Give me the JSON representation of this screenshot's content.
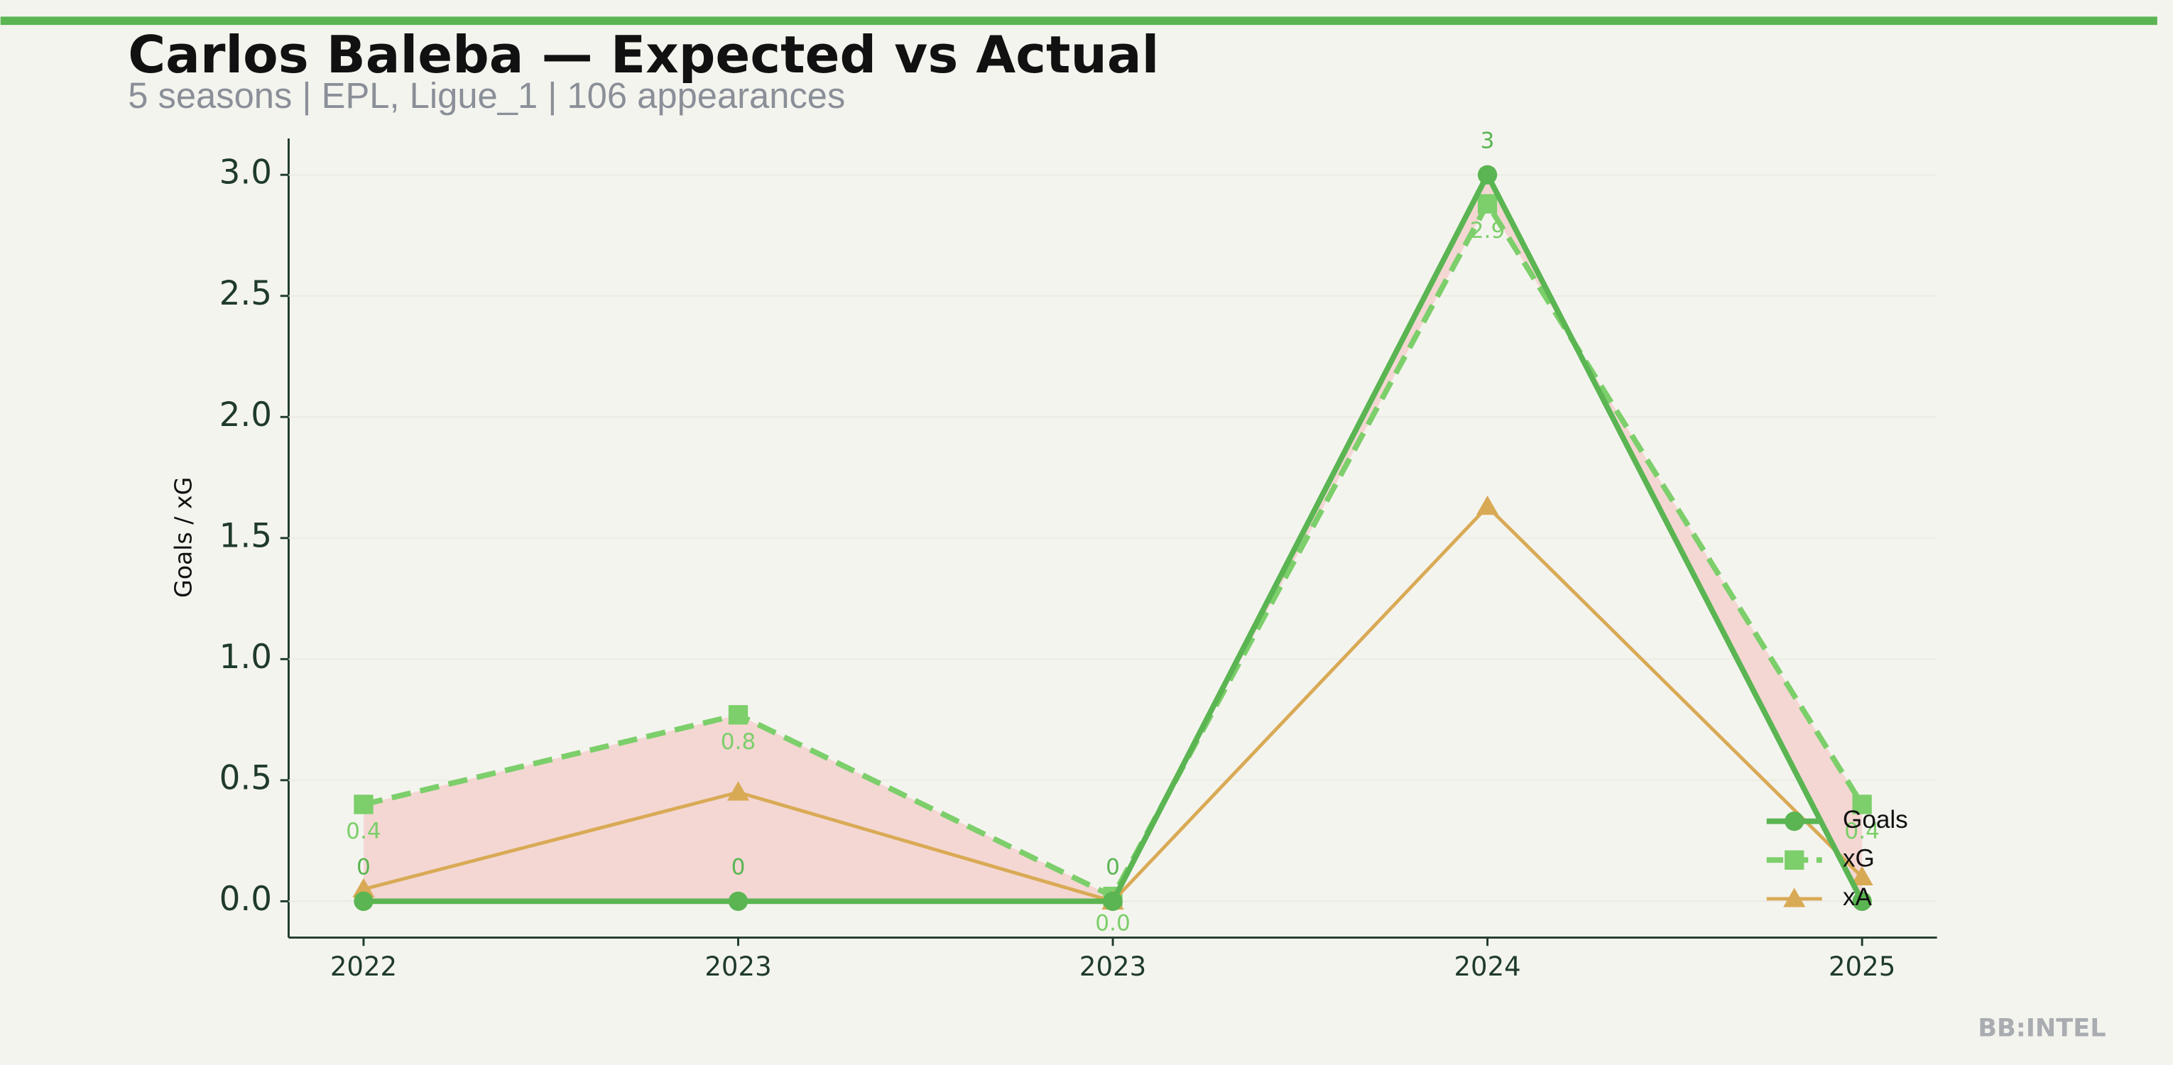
{
  "chart_data": {
    "type": "line",
    "title": "Carlos Baleba — Expected vs Actual",
    "subtitle": "5 seasons | EPL, Ligue_1 | 106 appearances",
    "ylabel": "Goals / xG",
    "watermark": "BB:INTEL",
    "categories": [
      "2022",
      "2023",
      "2023",
      "2024",
      "2025"
    ],
    "series": [
      {
        "name": "Goals",
        "color": "#5ab552",
        "dash": false,
        "marker": "circle",
        "values": [
          0,
          0,
          0,
          3,
          0
        ],
        "value_labels": [
          "0",
          "0",
          "0",
          "3",
          null
        ]
      },
      {
        "name": "xG",
        "color": "#7ccf6a",
        "dash": true,
        "marker": "square",
        "values": [
          0.4,
          0.77,
          0.02,
          2.88,
          0.4
        ],
        "value_labels": [
          "0.4",
          "0.8",
          "0.0",
          "2.9",
          "0.4"
        ]
      },
      {
        "name": "xA",
        "color": "#d9aa55",
        "dash": false,
        "marker": "triangle",
        "values": [
          0.05,
          0.45,
          0.0,
          1.63,
          0.1
        ]
      }
    ],
    "fill_between": {
      "series": [
        0,
        1
      ],
      "color": "#f4d0cc"
    },
    "ylim": [
      -0.15,
      3.15
    ],
    "yticks": [
      {
        "value": 0,
        "label": "0.0"
      },
      0.5,
      {
        "value": 1,
        "label": "1.0"
      },
      1.5,
      {
        "value": 2,
        "label": "2.0"
      },
      2.5,
      {
        "value": 3,
        "label": "3.0"
      }
    ],
    "grid": true,
    "legend": "lower right"
  }
}
